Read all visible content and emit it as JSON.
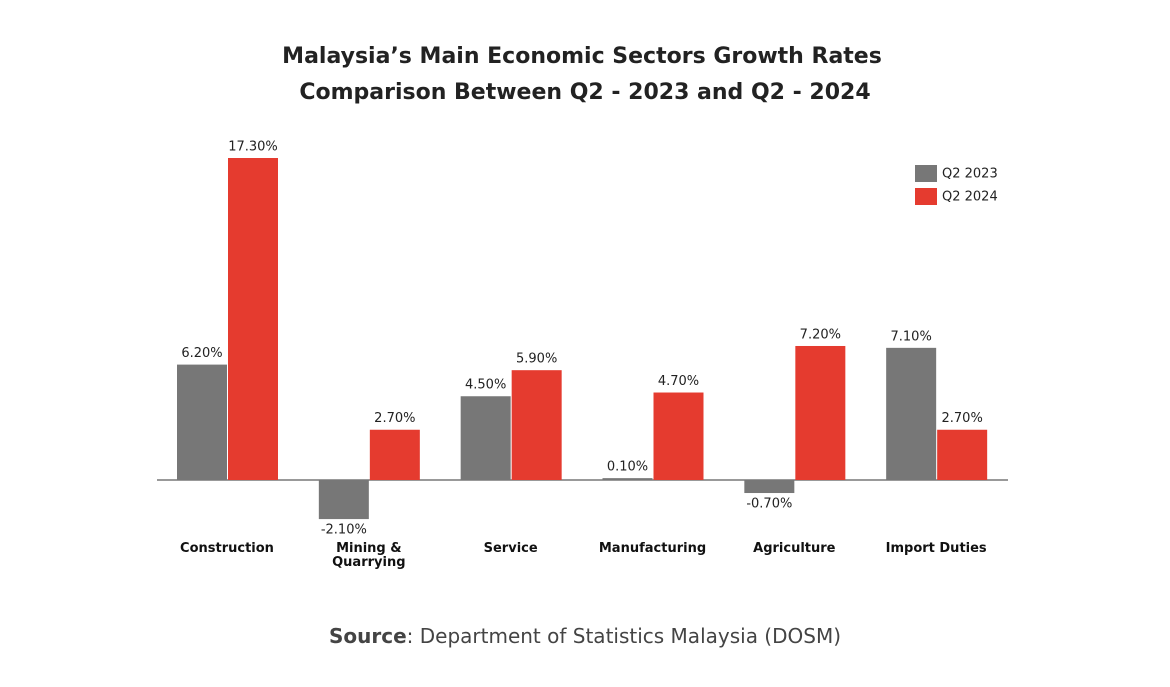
{
  "chart_data": {
    "type": "bar",
    "title": [
      "Malaysia’s Main Economic Sectors Growth Rates",
      "Comparison Between Q2 - 2023 and Q2 - 2024"
    ],
    "categories": [
      "Construction",
      "Mining & Quarrying",
      "Service",
      "Manufacturing",
      "Agriculture",
      "Import Duties"
    ],
    "series": [
      {
        "name": "Q2 2023",
        "color": "#777777",
        "values": [
          6.2,
          -2.1,
          4.5,
          0.1,
          -0.7,
          7.1
        ],
        "value_labels": [
          "6.20%",
          "-2.10%",
          "4.50%",
          "0.10%",
          "-0.70%",
          "7.10%"
        ]
      },
      {
        "name": "Q2 2024",
        "color": "#e53b2f",
        "values": [
          17.3,
          2.7,
          5.9,
          4.7,
          7.2,
          2.7
        ],
        "value_labels": [
          "17.30%",
          "2.70%",
          "5.90%",
          "4.70%",
          "7.20%",
          "2.70%"
        ]
      }
    ],
    "legend": "top-right",
    "source_label": "Source",
    "source": ": Department of Statistics Malaysia (DOSM)"
  }
}
